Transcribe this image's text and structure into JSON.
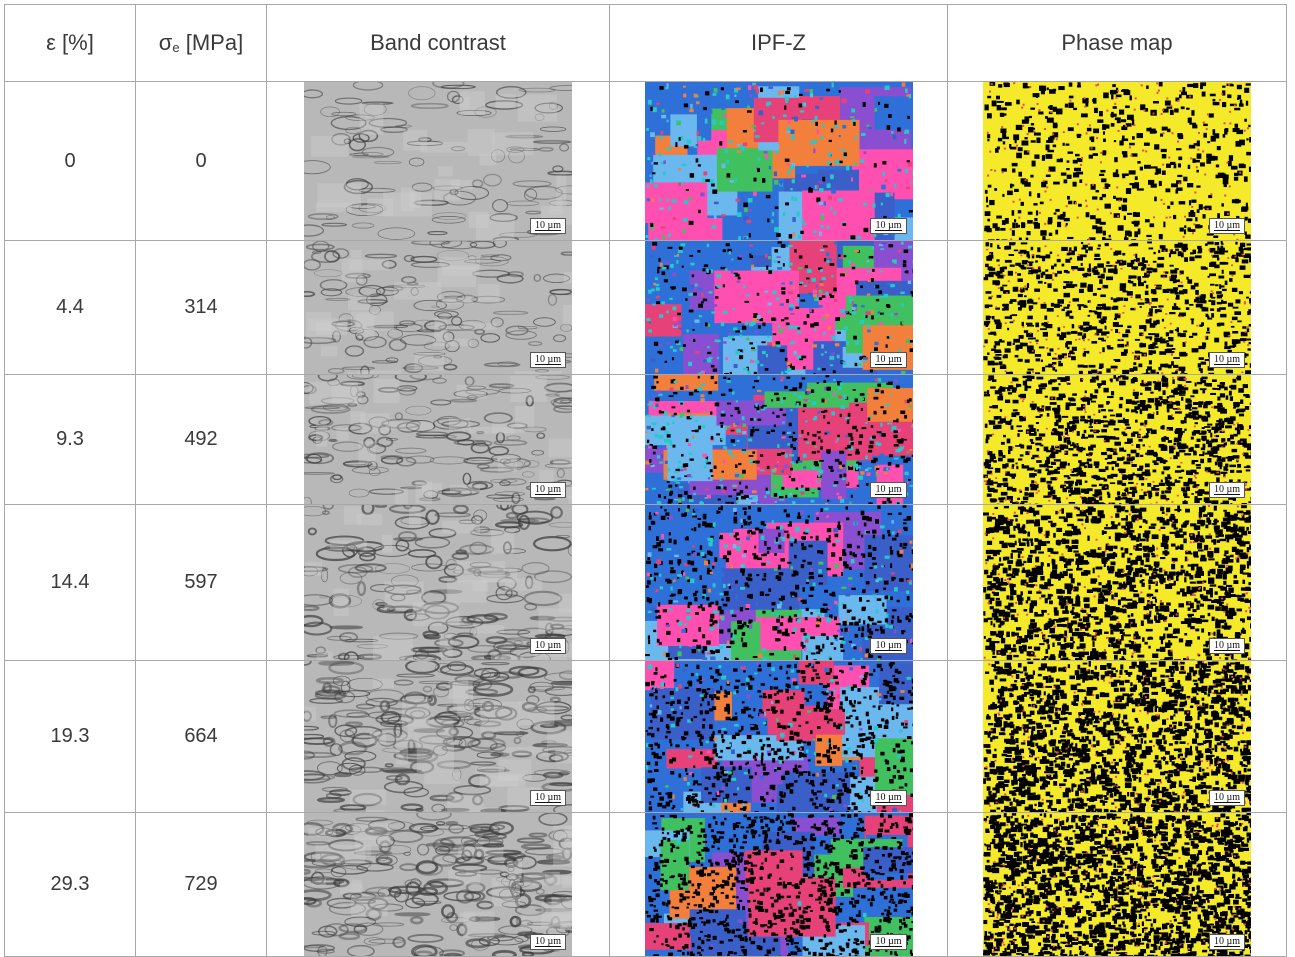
{
  "table": {
    "headers": {
      "strain": "ε [%]",
      "stress_symbol": "σ",
      "stress_sub": "e",
      "stress_unit": " [MPa]",
      "band_contrast": "Band contrast",
      "ipf": "IPF-Z",
      "phase": "Phase map"
    },
    "rows": [
      {
        "strain": "0",
        "stress": "0"
      },
      {
        "strain": "4.4",
        "stress": "314"
      },
      {
        "strain": "9.3",
        "stress": "492"
      },
      {
        "strain": "14.4",
        "stress": "597"
      },
      {
        "strain": "19.3",
        "stress": "664"
      },
      {
        "strain": "29.3",
        "stress": "729"
      }
    ],
    "scale_bar": "10 µm"
  },
  "colors": {
    "ipf_palette": [
      "#2e6fd8",
      "#41c060",
      "#6ab8ee",
      "#8a4fd0",
      "#e7417a",
      "#f27f3c",
      "#ff4fb0",
      "#3b5fc9"
    ],
    "phase_fcc": "#f4ea2a",
    "phase_bcc": "#000000",
    "phase_dots": "#e2475b",
    "band_light": "#b8b8b8",
    "band_dark": "#3c3c3c"
  }
}
